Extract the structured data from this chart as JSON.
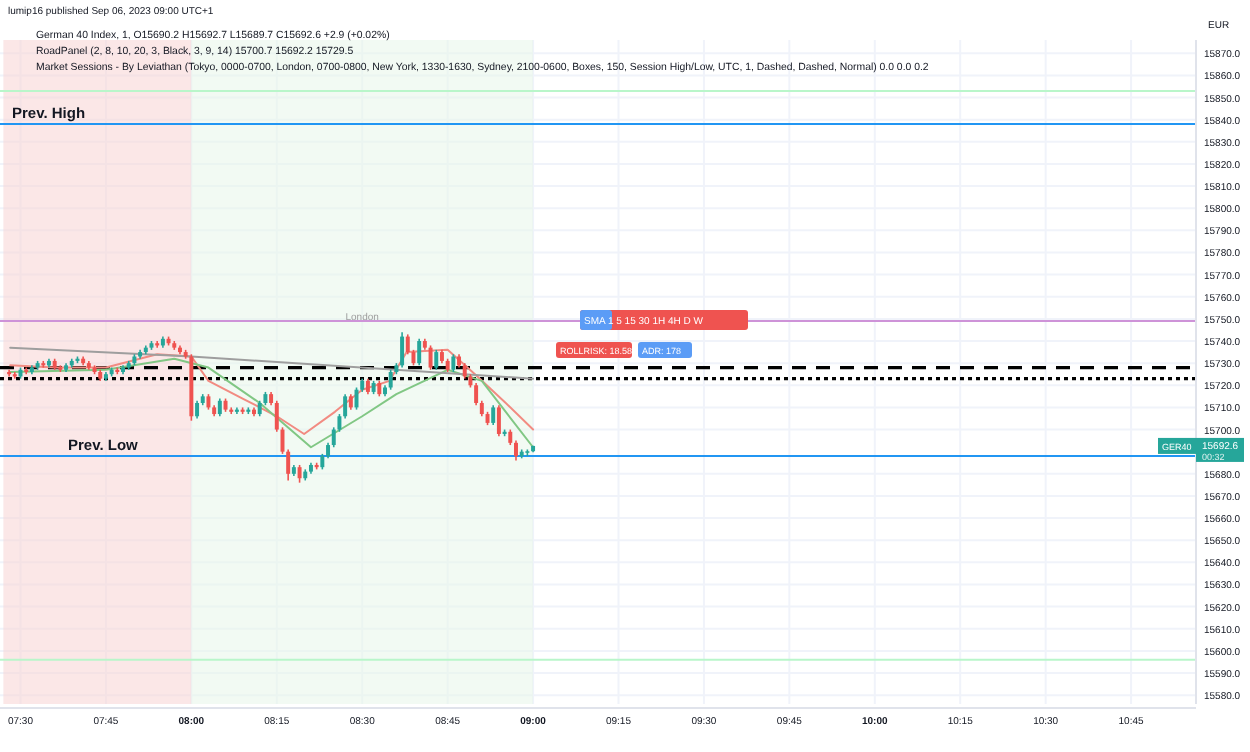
{
  "chart_data": {
    "type": "candlestick",
    "title": "lumip16 published Sep 06, 2023 09:00 UTC+1",
    "annotations": [
      "German 40 Index, 1, O15690.2 H15692.7 L15689.7 C15692.6 +2.9 (+0.02%)",
      "RoadPanel (2, 8, 10, 20, 3, Black, 3, 9, 14) 15700.7 15692.2 15729.5",
      "Market Sessions - By Leviathan (Tokyo, 0000-0700, London, 0700-0800, New York, 1330-1630, Sydney, 2100-0600, Boxes, 150, Session High/Low, UTC, 1, Dashed, Dashed, Normal) 0.0 0.0 0.2",
      "EUR",
      "SMA 1 5 15 30 1H 4H D W",
      "ROLLRISK: 18.58",
      "ADR: 178",
      "GER40",
      "00:32",
      {
        "text": "15692.6",
        "y": 15692.6
      }
    ],
    "x": [
      7.4667,
      7.4833,
      7.5,
      7.5167,
      7.5333,
      7.55,
      7.5667,
      7.5833,
      7.6,
      7.6167,
      7.6333,
      7.65,
      7.6667,
      7.6833,
      7.7,
      7.7167,
      7.7333,
      7.75,
      7.7667,
      7.7833,
      7.8,
      7.8167,
      7.8333,
      7.85,
      7.8667,
      7.8833,
      7.9,
      7.9167,
      7.9333,
      7.95,
      7.9667,
      7.9833,
      8,
      8.0167,
      8.0333,
      8.05,
      8.0667,
      8.0833,
      8.1,
      8.1167,
      8.1333,
      8.15,
      8.1667,
      8.1833,
      8.2,
      8.2167,
      8.2333,
      8.25,
      8.2667,
      8.2833,
      8.3,
      8.3167,
      8.3333,
      8.35,
      8.3667,
      8.3833,
      8.4,
      8.4167,
      8.4333,
      8.45,
      8.4667,
      8.4833,
      8.5,
      8.5167,
      8.5333,
      8.55,
      8.5667,
      8.5833,
      8.6,
      8.6167,
      8.6333,
      8.65,
      8.6667,
      8.6833,
      8.7,
      8.7167,
      8.7333,
      8.75,
      8.7667,
      8.7833,
      8.8,
      8.8167,
      8.8333,
      8.85,
      8.8667,
      8.8833,
      8.9,
      8.9167,
      8.9333,
      8.95,
      8.9667,
      8.9833,
      9
    ],
    "ohlc": [
      [
        15726,
        15727,
        15724,
        15725
      ],
      [
        15725,
        15726,
        15723,
        15724
      ],
      [
        15724,
        15728,
        15723,
        15727
      ],
      [
        15727,
        15728,
        15725,
        15726
      ],
      [
        15726,
        15729,
        15725,
        15728
      ],
      [
        15728,
        15731,
        15727,
        15730
      ],
      [
        15730,
        15731,
        15728,
        15729
      ],
      [
        15729,
        15732,
        15728,
        15731
      ],
      [
        15731,
        15732,
        15727,
        15728
      ],
      [
        15728,
        15729,
        15726,
        15727
      ],
      [
        15727,
        15730,
        15726,
        15729
      ],
      [
        15729,
        15732,
        15728,
        15731
      ],
      [
        15731,
        15733,
        15730,
        15732
      ],
      [
        15732,
        15733,
        15729,
        15730
      ],
      [
        15730,
        15731,
        15727,
        15728
      ],
      [
        15728,
        15729,
        15725,
        15726
      ],
      [
        15726,
        15727,
        15722,
        15723
      ],
      [
        15723,
        15726,
        15722,
        15725
      ],
      [
        15725,
        15728,
        15724,
        15727
      ],
      [
        15727,
        15728,
        15725,
        15726
      ],
      [
        15726,
        15729,
        15725,
        15728
      ],
      [
        15728,
        15731,
        15727,
        15730
      ],
      [
        15730,
        15734,
        15729,
        15733
      ],
      [
        15733,
        15736,
        15732,
        15735
      ],
      [
        15735,
        15738,
        15734,
        15737
      ],
      [
        15737,
        15740,
        15736,
        15739
      ],
      [
        15739,
        15740,
        15737,
        15738
      ],
      [
        15738,
        15742,
        15737,
        15741
      ],
      [
        15741,
        15742,
        15738,
        15739
      ],
      [
        15739,
        15740,
        15736,
        15737
      ],
      [
        15737,
        15738,
        15734,
        15735
      ],
      [
        15735,
        15736,
        15732,
        15733
      ],
      [
        15733,
        15734,
        15704,
        15706
      ],
      [
        15706,
        15713,
        15705,
        15712
      ],
      [
        15712,
        15716,
        15711,
        15715
      ],
      [
        15715,
        15716,
        15709,
        15710
      ],
      [
        15710,
        15711,
        15706,
        15707
      ],
      [
        15707,
        15714,
        15706,
        15713
      ],
      [
        15713,
        15714,
        15708,
        15709
      ],
      [
        15709,
        15710,
        15707,
        15708
      ],
      [
        15708,
        15710,
        15707,
        15709
      ],
      [
        15709,
        15710,
        15707,
        15708
      ],
      [
        15708,
        15710,
        15707,
        15709
      ],
      [
        15709,
        15710,
        15706,
        15707
      ],
      [
        15707,
        15713,
        15706,
        15712
      ],
      [
        15712,
        15717,
        15711,
        15716
      ],
      [
        15716,
        15717,
        15711,
        15712
      ],
      [
        15712,
        15713,
        15699,
        15700
      ],
      [
        15700,
        15701,
        15689,
        15690
      ],
      [
        15690,
        15691,
        15677,
        15680
      ],
      [
        15680,
        15684,
        15679,
        15683
      ],
      [
        15683,
        15684,
        15676,
        15678
      ],
      [
        15678,
        15682,
        15677,
        15681
      ],
      [
        15681,
        15685,
        15680,
        15684
      ],
      [
        15684,
        15685,
        15682,
        15683
      ],
      [
        15683,
        15689,
        15682,
        15688
      ],
      [
        15688,
        15694,
        15687,
        15693
      ],
      [
        15693,
        15701,
        15692,
        15700
      ],
      [
        15700,
        15707,
        15699,
        15706
      ],
      [
        15706,
        15716,
        15705,
        15715
      ],
      [
        15715,
        15716,
        15709,
        15710
      ],
      [
        15710,
        15719,
        15709,
        15718
      ],
      [
        15718,
        15723,
        15717,
        15722
      ],
      [
        15722,
        15723,
        15716,
        15717
      ],
      [
        15717,
        15722,
        15716,
        15721
      ],
      [
        15721,
        15722,
        15715,
        15716
      ],
      [
        15716,
        15720,
        15715,
        15719
      ],
      [
        15719,
        15727,
        15718,
        15726
      ],
      [
        15726,
        15730,
        15725,
        15729
      ],
      [
        15729,
        15744,
        15728,
        15742
      ],
      [
        15742,
        15743,
        15734,
        15735
      ],
      [
        15735,
        15736,
        15729,
        15730
      ],
      [
        15730,
        15741,
        15729,
        15740
      ],
      [
        15740,
        15741,
        15736,
        15737
      ],
      [
        15737,
        15738,
        15727,
        15728
      ],
      [
        15728,
        15736,
        15727,
        15735
      ],
      [
        15735,
        15736,
        15730,
        15731
      ],
      [
        15731,
        15732,
        15726,
        15727
      ],
      [
        15727,
        15734,
        15726,
        15733
      ],
      [
        15733,
        15734,
        15728,
        15729
      ],
      [
        15729,
        15730,
        15723,
        15724
      ],
      [
        15724,
        15725,
        15719,
        15720
      ],
      [
        15720,
        15721,
        15711,
        15712
      ],
      [
        15712,
        15713,
        15706,
        15707
      ],
      [
        15707,
        15708,
        15702,
        15703
      ],
      [
        15703,
        15711,
        15702,
        15710
      ],
      [
        15710,
        15711,
        15697,
        15698
      ],
      [
        15698,
        15700,
        15697,
        15699
      ],
      [
        15699,
        15700,
        15693,
        15694
      ],
      [
        15694,
        15695,
        15686,
        15688
      ],
      [
        15688,
        15691,
        15687,
        15690
      ],
      [
        15690,
        15691,
        15688,
        15690.2
      ],
      [
        15690.2,
        15692.7,
        15689.7,
        15692.6
      ]
    ],
    "colors": [
      "#ef5350",
      "#ef5350",
      "#26a69a",
      "#ef5350",
      "#26a69a",
      "#26a69a",
      "#ef5350",
      "#26a69a",
      "#ef5350",
      "#ef5350",
      "#26a69a",
      "#26a69a",
      "#26a69a",
      "#ef5350",
      "#ef5350",
      "#ef5350",
      "#ef5350",
      "#26a69a",
      "#26a69a",
      "#ef5350",
      "#26a69a",
      "#26a69a",
      "#26a69a",
      "#26a69a",
      "#26a69a",
      "#26a69a",
      "#ef5350",
      "#26a69a",
      "#ef5350",
      "#ef5350",
      "#ef5350",
      "#ef5350",
      "#ef5350",
      "#26a69a",
      "#26a69a",
      "#ef5350",
      "#ef5350",
      "#26a69a",
      "#ef5350",
      "#ef5350",
      "#26a69a",
      "#ef5350",
      "#26a69a",
      "#ef5350",
      "#26a69a",
      "#26a69a",
      "#ef5350",
      "#ef5350",
      "#ef5350",
      "#ef5350",
      "#26a69a",
      "#ef5350",
      "#26a69a",
      "#26a69a",
      "#ef5350",
      "#26a69a",
      "#26a69a",
      "#26a69a",
      "#26a69a",
      "#26a69a",
      "#ef5350",
      "#26a69a",
      "#26a69a",
      "#ef5350",
      "#26a69a",
      "#ef5350",
      "#26a69a",
      "#26a69a",
      "#26a69a",
      "#26a69a",
      "#ef5350",
      "#ef5350",
      "#26a69a",
      "#ef5350",
      "#ef5350",
      "#26a69a",
      "#ef5350",
      "#ef5350",
      "#26a69a",
      "#ef5350",
      "#ef5350",
      "#ef5350",
      "#ef5350",
      "#ef5350",
      "#ef5350",
      "#26a69a",
      "#ef5350",
      "#26a69a",
      "#ef5350",
      "#ef5350",
      "#26a69a",
      "#26a69a",
      "#26a69a"
    ],
    "series": [
      {
        "type": "line",
        "color": "#f28b82",
        "x": [
          7.47,
          7.6,
          7.75,
          7.9,
          8,
          8.05,
          8.15,
          8.25,
          8.33,
          8.42,
          8.5,
          8.58,
          8.63,
          8.75,
          8.83,
          8.92,
          9
        ],
        "values": [
          15729,
          15728,
          15728,
          15734,
          15733,
          15722,
          15714,
          15706,
          15698,
          15708,
          15718,
          15722,
          15735,
          15736,
          15725,
          15712,
          15700
        ]
      },
      {
        "type": "line",
        "color": "#81c784",
        "x": [
          7.47,
          7.75,
          7.95,
          8.05,
          8.2,
          8.35,
          8.5,
          8.6,
          8.75,
          8.85,
          9
        ],
        "values": [
          15726,
          15727,
          15732,
          15728,
          15712,
          15692,
          15706,
          15716,
          15727,
          15722,
          15692
        ]
      },
      {
        "type": "line",
        "color": "#9e9e9e",
        "x": [
          7.47,
          8,
          9
        ],
        "values": [
          15737,
          15733,
          15723
        ]
      }
    ],
    "ref_lines": [
      {
        "axis": "y",
        "value": 15853,
        "color": "#b9f6ca"
      },
      {
        "axis": "y",
        "value": 15838,
        "label": "Prev. High",
        "color": "#2196f3"
      },
      {
        "axis": "y",
        "value": 15749,
        "color": "#ce93d8"
      },
      {
        "axis": "y",
        "value": 15728,
        "color": "#000000",
        "line_style": "dashed"
      },
      {
        "axis": "y",
        "value": 15723,
        "color": "#000000",
        "line_style": "dotted"
      },
      {
        "axis": "y",
        "value": 15688,
        "label": "Prev. Low",
        "color": "#2196f3"
      },
      {
        "axis": "y",
        "value": 15596,
        "color": "#b9f6ca"
      }
    ],
    "bands": [
      {
        "axis": "x",
        "from": 7.45,
        "to": 8,
        "color": "#f8d4d4"
      },
      {
        "axis": "x",
        "from": 8,
        "to": 9,
        "label": "London",
        "color": "#e8f5e9"
      }
    ],
    "xlim": [
      7.44,
      10.94
    ],
    "xticks": [
      {
        "value": 7.5,
        "label": "07:30"
      },
      {
        "value": 7.75,
        "label": "07:45"
      },
      {
        "value": 8,
        "label": "08:00"
      },
      {
        "value": 8.25,
        "label": "08:15"
      },
      {
        "value": 8.5,
        "label": "08:30"
      },
      {
        "value": 8.75,
        "label": "08:45"
      },
      {
        "value": 9,
        "label": "09:00"
      },
      {
        "value": 9.25,
        "label": "09:15"
      },
      {
        "value": 9.5,
        "label": "09:30"
      },
      {
        "value": 9.75,
        "label": "09:45"
      },
      {
        "value": 10,
        "label": "10:00"
      },
      {
        "value": 10.25,
        "label": "10:15"
      },
      {
        "value": 10.5,
        "label": "10:30"
      },
      {
        "value": 10.75,
        "label": "10:45"
      }
    ],
    "ylim": [
      15576,
      15876
    ],
    "yticks": [
      {
        "value": 15580,
        "label": "15580.0"
      },
      {
        "value": 15590,
        "label": "15590.0"
      },
      {
        "value": 15600,
        "label": "15600.0"
      },
      {
        "value": 15610,
        "label": "15610.0"
      },
      {
        "value": 15620,
        "label": "15620.0"
      },
      {
        "value": 15630,
        "label": "15630.0"
      },
      {
        "value": 15640,
        "label": "15640.0"
      },
      {
        "value": 15650,
        "label": "15650.0"
      },
      {
        "value": 15660,
        "label": "15660.0"
      },
      {
        "value": 15670,
        "label": "15670.0"
      },
      {
        "value": 15680,
        "label": "15680.0"
      },
      {
        "value": 15700,
        "label": "15700.0"
      },
      {
        "value": 15710,
        "label": "15710.0"
      },
      {
        "value": 15720,
        "label": "15720.0"
      },
      {
        "value": 15730,
        "label": "15730.0"
      },
      {
        "value": 15740,
        "label": "15740.0"
      },
      {
        "value": 15750,
        "label": "15750.0"
      },
      {
        "value": 15760,
        "label": "15760.0"
      },
      {
        "value": 15770,
        "label": "15770.0"
      },
      {
        "value": 15780,
        "label": "15780.0"
      },
      {
        "value": 15790,
        "label": "15790.0"
      },
      {
        "value": 15800,
        "label": "15800.0"
      },
      {
        "value": 15810,
        "label": "15810.0"
      },
      {
        "value": 15820,
        "label": "15820.0"
      },
      {
        "value": 15830,
        "label": "15830.0"
      },
      {
        "value": 15840,
        "label": "15840.0"
      },
      {
        "value": 15850,
        "label": "15850.0"
      },
      {
        "value": 15860,
        "label": "15860.0"
      },
      {
        "value": 15870,
        "label": "15870.0"
      }
    ],
    "grid": true
  }
}
